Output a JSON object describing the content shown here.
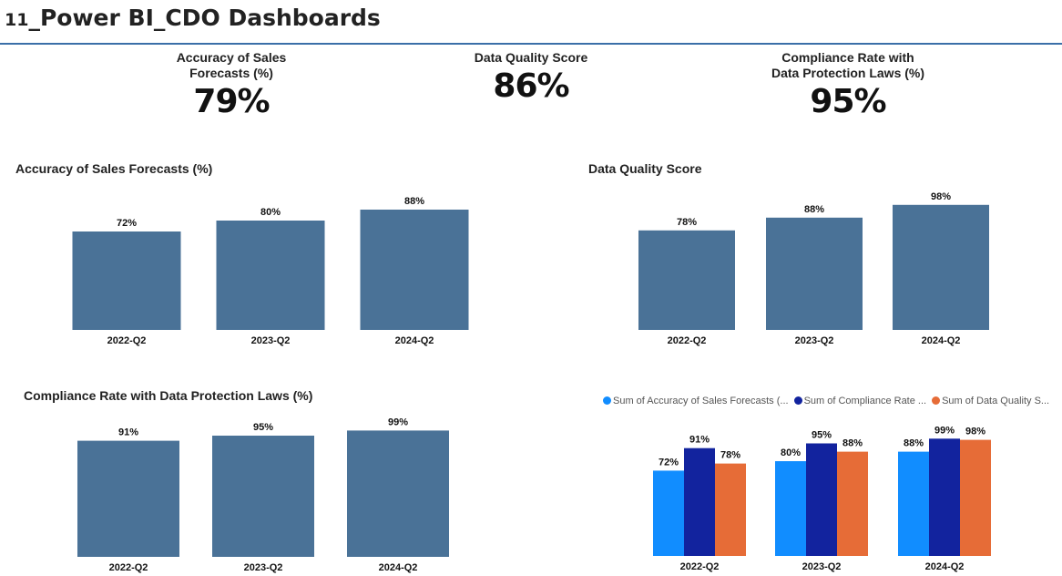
{
  "header": {
    "title_prefix": "11",
    "title_rest": "_Power BI_CDO Dashboards"
  },
  "kpis": [
    {
      "label_line1": "Accuracy of Sales",
      "label_line2": "Forecasts (%)",
      "value": "79%"
    },
    {
      "label_line1": "Data Quality Score",
      "label_line2": "",
      "value": "86%"
    },
    {
      "label_line1": "Compliance Rate with",
      "label_line2": "Data Protection Laws (%)",
      "value": "95%"
    }
  ],
  "colors": {
    "bar": "#4a7297",
    "accent_rule": "#3a6fa8",
    "series_accuracy": "#118dff",
    "series_compliance": "#12239e",
    "series_quality": "#e66c37"
  },
  "chart_data": [
    {
      "type": "bar",
      "title": "Accuracy of Sales Forecasts (%)",
      "categories": [
        "2022-Q2",
        "2023-Q2",
        "2024-Q2"
      ],
      "values": [
        72,
        80,
        88
      ],
      "labels": [
        "72%",
        "80%",
        "88%"
      ],
      "ylim": [
        0,
        100
      ]
    },
    {
      "type": "bar",
      "title": "Data Quality Score",
      "categories": [
        "2022-Q2",
        "2023-Q2",
        "2024-Q2"
      ],
      "values": [
        78,
        88,
        98
      ],
      "labels": [
        "78%",
        "88%",
        "98%"
      ],
      "ylim": [
        0,
        100
      ]
    },
    {
      "type": "bar",
      "title": "Compliance Rate with Data Protection Laws (%)",
      "categories": [
        "2022-Q2",
        "2023-Q2",
        "2024-Q2"
      ],
      "values": [
        91,
        95,
        99
      ],
      "labels": [
        "91%",
        "95%",
        "99%"
      ],
      "ylim": [
        0,
        100
      ]
    },
    {
      "type": "bar",
      "title": "",
      "categories": [
        "2022-Q2",
        "2023-Q2",
        "2024-Q2"
      ],
      "series": [
        {
          "name": "Sum of Accuracy of Sales Forecasts (...",
          "values": [
            72,
            80,
            88
          ],
          "labels": [
            "72%",
            "80%",
            "88%"
          ]
        },
        {
          "name": "Sum of Compliance Rate ...",
          "values": [
            91,
            95,
            99
          ],
          "labels": [
            "91%",
            "95%",
            "99%"
          ]
        },
        {
          "name": "Sum of Data Quality S...",
          "values": [
            78,
            88,
            98
          ],
          "labels": [
            "78%",
            "88%",
            "98%"
          ]
        }
      ],
      "legend": "top",
      "ylim": [
        0,
        100
      ]
    }
  ]
}
